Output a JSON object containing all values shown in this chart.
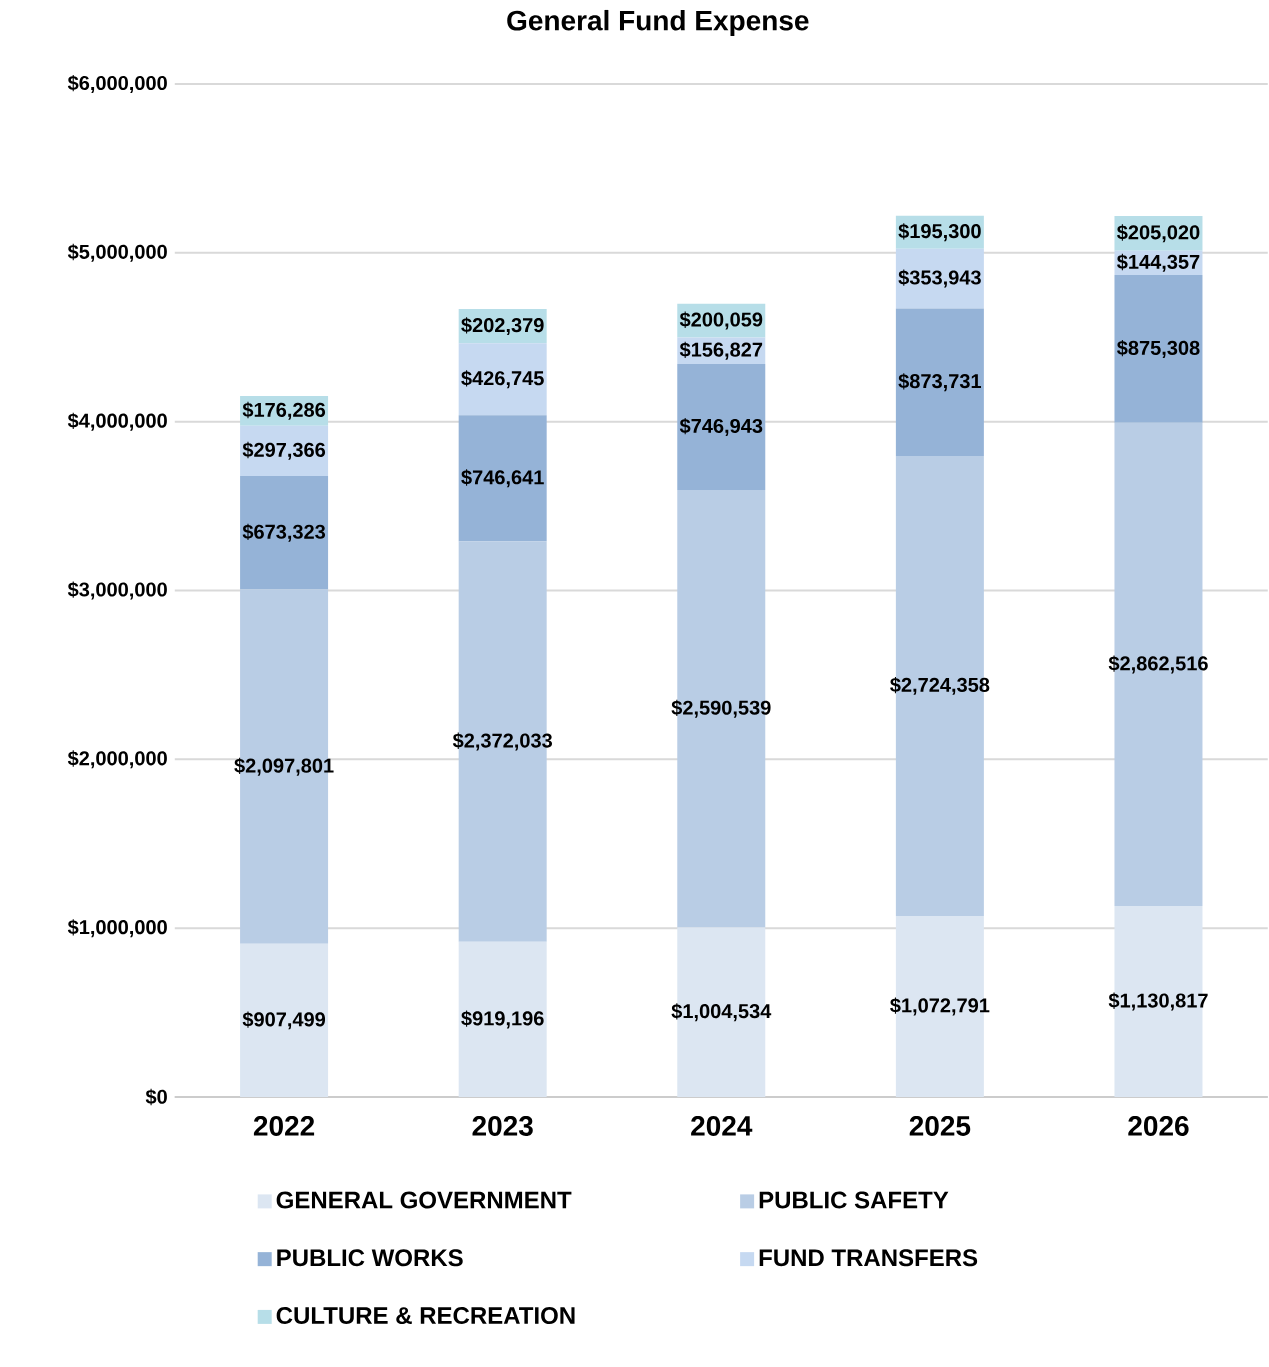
{
  "chart_data": {
    "type": "bar",
    "title": "General Fund Expense",
    "stacked": true,
    "grid": "y",
    "legend": "bottom",
    "categories": [
      "2022",
      "2023",
      "2024",
      "2025",
      "2026"
    ],
    "ylim": [
      0,
      6000000
    ],
    "yticks": [
      {
        "value": 0,
        "label": "$0"
      },
      {
        "value": 1000000,
        "label": "$1,000,000"
      },
      {
        "value": 2000000,
        "label": "$2,000,000"
      },
      {
        "value": 3000000,
        "label": "$3,000,000"
      },
      {
        "value": 4000000,
        "label": "$4,000,000"
      },
      {
        "value": 5000000,
        "label": "$5,000,000"
      },
      {
        "value": 6000000,
        "label": "$6,000,000"
      }
    ],
    "series": [
      {
        "name": "GENERAL GOVERNMENT",
        "color": "#dce6f2",
        "values": [
          907499,
          919196,
          1004534,
          1072791,
          1130817
        ],
        "value_labels": [
          "$907,499",
          "$919,196",
          "$1,004,534",
          "$1,072,791",
          "$1,130,817"
        ]
      },
      {
        "name": "PUBLIC SAFETY",
        "color": "#b9cde5",
        "values": [
          2097801,
          2372033,
          2590539,
          2724358,
          2862516
        ],
        "value_labels": [
          "$2,097,801",
          "$2,372,033",
          "$2,590,539",
          "$2,724,358",
          "$2,862,516"
        ]
      },
      {
        "name": "PUBLIC WORKS",
        "color": "#95b3d7",
        "values": [
          673323,
          746641,
          746943,
          873731,
          875308
        ],
        "value_labels": [
          "$673,323",
          "$746,641",
          "$746,943",
          "$873,731",
          "$875,308"
        ]
      },
      {
        "name": "FUND TRANSFERS",
        "color": "#c6d9f1",
        "values": [
          297366,
          426745,
          156827,
          353943,
          144357
        ],
        "value_labels": [
          "$297,366",
          "$426,745",
          "$156,827",
          "$353,943",
          "$144,357"
        ]
      },
      {
        "name": "CULTURE & RECREATION",
        "color": "#b7dee8",
        "values": [
          176286,
          202379,
          200059,
          195300,
          205020
        ],
        "value_labels": [
          "$176,286",
          "$202,379",
          "$200,059",
          "$195,300",
          "$205,020"
        ]
      }
    ]
  }
}
